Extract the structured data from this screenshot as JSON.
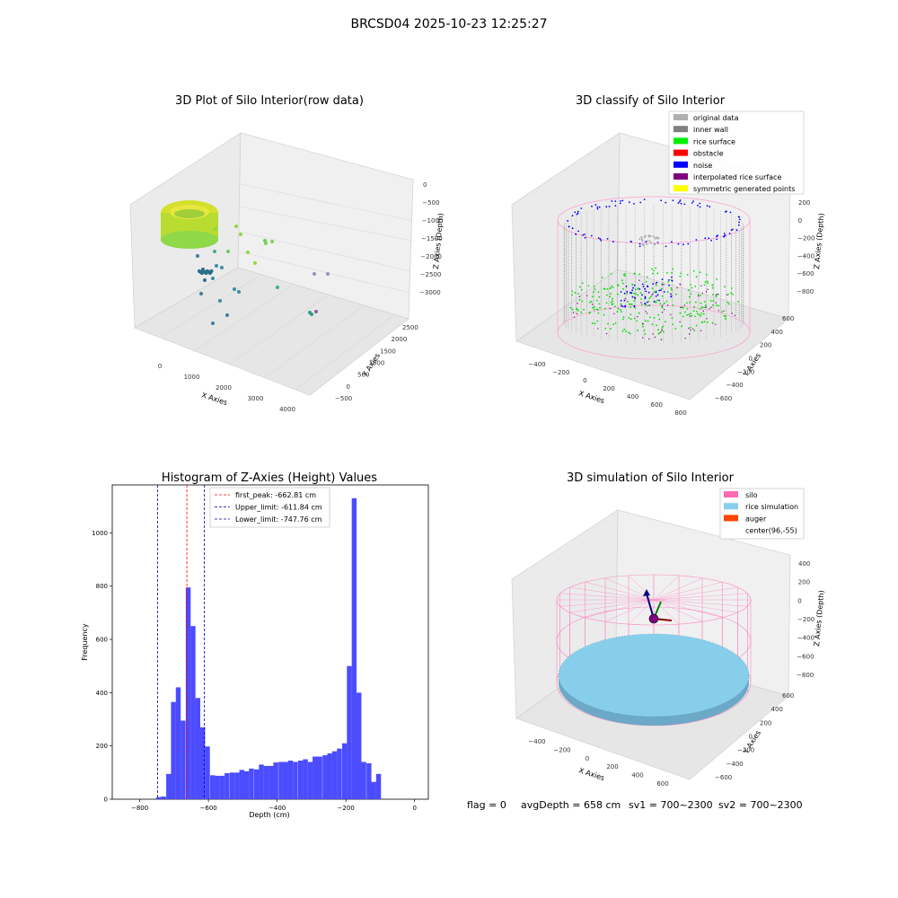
{
  "suptitle": "BRCSD04 2025-10-23 12:25:27",
  "footer": {
    "flag": "flag = 0",
    "avg": "avgDepth = 658 cm",
    "sv1": "sv1 = 700~2300",
    "sv2": "sv2 = 700~2300"
  },
  "colors": {
    "hist_bar": "#4c4cff",
    "first_peak": "#ff0000",
    "limit": "#0000aa",
    "original": "#b0b0b0",
    "inner_wall": "#808080",
    "rice_surface": "#00ee00",
    "obstacle": "#ff0000",
    "noise": "#0000ff",
    "interp": "#800080",
    "symmetric": "#ffff00",
    "silo": "#ff69b4",
    "rice_sim": "#87ceeb",
    "auger": "#ff4500"
  },
  "panels": {
    "p1": {
      "title": "3D Plot of Silo Interior(row data)",
      "xlabel": "X Axies",
      "ylabel": "Y Axies",
      "zlabel": "Z Axies (Depth)",
      "xticks": [
        "0",
        "1000",
        "2000",
        "3000",
        "4000"
      ],
      "yticks": [
        "−500",
        "0",
        "500",
        "1000",
        "1500",
        "2000",
        "2500"
      ],
      "zticks": [
        "0",
        "−500",
        "−1000",
        "−1500",
        "−2000",
        "−2500",
        "−3000"
      ]
    },
    "p2": {
      "title": "3D classify of Silo Interior",
      "xlabel": "X Axies",
      "ylabel": "Y Axies",
      "zlabel": "Z Axies (Depth)",
      "xticks": [
        "−400",
        "−200",
        "0",
        "200",
        "400",
        "600",
        "800"
      ],
      "yticks": [
        "−600",
        "−400",
        "−200",
        "0",
        "200",
        "400",
        "600"
      ],
      "zticks": [
        "200",
        "0",
        "−200",
        "−400",
        "−600",
        "−800"
      ],
      "legend": [
        {
          "label": "original data",
          "color": "#b0b0b0"
        },
        {
          "label": "inner wall",
          "color": "#808080"
        },
        {
          "label": "rice surface",
          "color": "#00ee00"
        },
        {
          "label": "obstacle",
          "color": "#ff0000"
        },
        {
          "label": "noise",
          "color": "#0000ff"
        },
        {
          "label": "interpolated rice surface",
          "color": "#800080"
        },
        {
          "label": "symmetric generated points",
          "color": "#ffff00"
        }
      ]
    },
    "p4": {
      "title": "3D simulation of Silo Interior",
      "xlabel": "X Axies",
      "ylabel": "Y Axies",
      "zlabel": "Z Axies (Depth)",
      "xticks": [
        "−400",
        "−200",
        "0",
        "200",
        "400",
        "600"
      ],
      "yticks": [
        "−600",
        "−400",
        "−200",
        "0",
        "200",
        "400",
        "600"
      ],
      "zticks": [
        "400",
        "200",
        "0",
        "−200",
        "−400",
        "−600",
        "−800"
      ],
      "legend": [
        {
          "label": "silo",
          "color": "#ff69b4"
        },
        {
          "label": "rice simulation",
          "color": "#87ceeb"
        },
        {
          "label": "auger",
          "color": "#ff4500"
        },
        {
          "label": "center(96,-55)",
          "color": "#ffffff"
        }
      ]
    }
  },
  "chart_data": [
    {
      "type": "bar",
      "title": "Histogram of Z-Axies (Height) Values",
      "xlabel": "Depth (cm)",
      "ylabel": "Frequency",
      "xlim": [
        -880,
        40
      ],
      "ylim": [
        0,
        1180
      ],
      "xticks": [
        -800,
        -600,
        -400,
        -200,
        0
      ],
      "xtick_labels": [
        "−800",
        "−600",
        "−400",
        "−200",
        "0"
      ],
      "yticks": [
        0,
        200,
        400,
        600,
        800,
        1000
      ],
      "bin_width": 14.2,
      "bins": [
        [
          -752,
          8
        ],
        [
          -738,
          10
        ],
        [
          -723,
          95
        ],
        [
          -709,
          365
        ],
        [
          -695,
          420
        ],
        [
          -681,
          295
        ],
        [
          -666,
          795
        ],
        [
          -652,
          650
        ],
        [
          -638,
          380
        ],
        [
          -624,
          270
        ],
        [
          -610,
          198
        ],
        [
          -595,
          90
        ],
        [
          -581,
          88
        ],
        [
          -567,
          88
        ],
        [
          -553,
          98
        ],
        [
          -538,
          100
        ],
        [
          -524,
          100
        ],
        [
          -510,
          110
        ],
        [
          -496,
          105
        ],
        [
          -482,
          115
        ],
        [
          -467,
          112
        ],
        [
          -453,
          130
        ],
        [
          -439,
          125
        ],
        [
          -425,
          125
        ],
        [
          -411,
          138
        ],
        [
          -396,
          140
        ],
        [
          -382,
          140
        ],
        [
          -368,
          145
        ],
        [
          -354,
          140
        ],
        [
          -339,
          145
        ],
        [
          -325,
          150
        ],
        [
          -311,
          140
        ],
        [
          -297,
          160
        ],
        [
          -283,
          160
        ],
        [
          -268,
          165
        ],
        [
          -254,
          172
        ],
        [
          -240,
          180
        ],
        [
          -226,
          190
        ],
        [
          -211,
          210
        ],
        [
          -197,
          500
        ],
        [
          -183,
          1130
        ],
        [
          -169,
          400
        ],
        [
          -155,
          140
        ],
        [
          -140,
          135
        ],
        [
          -126,
          65
        ],
        [
          -112,
          95
        ]
      ],
      "lines": [
        {
          "label": "first_peak: -662.81 cm",
          "value": -662.81,
          "color": "#ff0000"
        },
        {
          "label": "Upper_limit: -611.84 cm",
          "value": -611.84,
          "color": "#0000aa"
        },
        {
          "label": "Lower_limit: -747.76 cm",
          "value": -747.76,
          "color": "#0000aa"
        }
      ]
    }
  ]
}
